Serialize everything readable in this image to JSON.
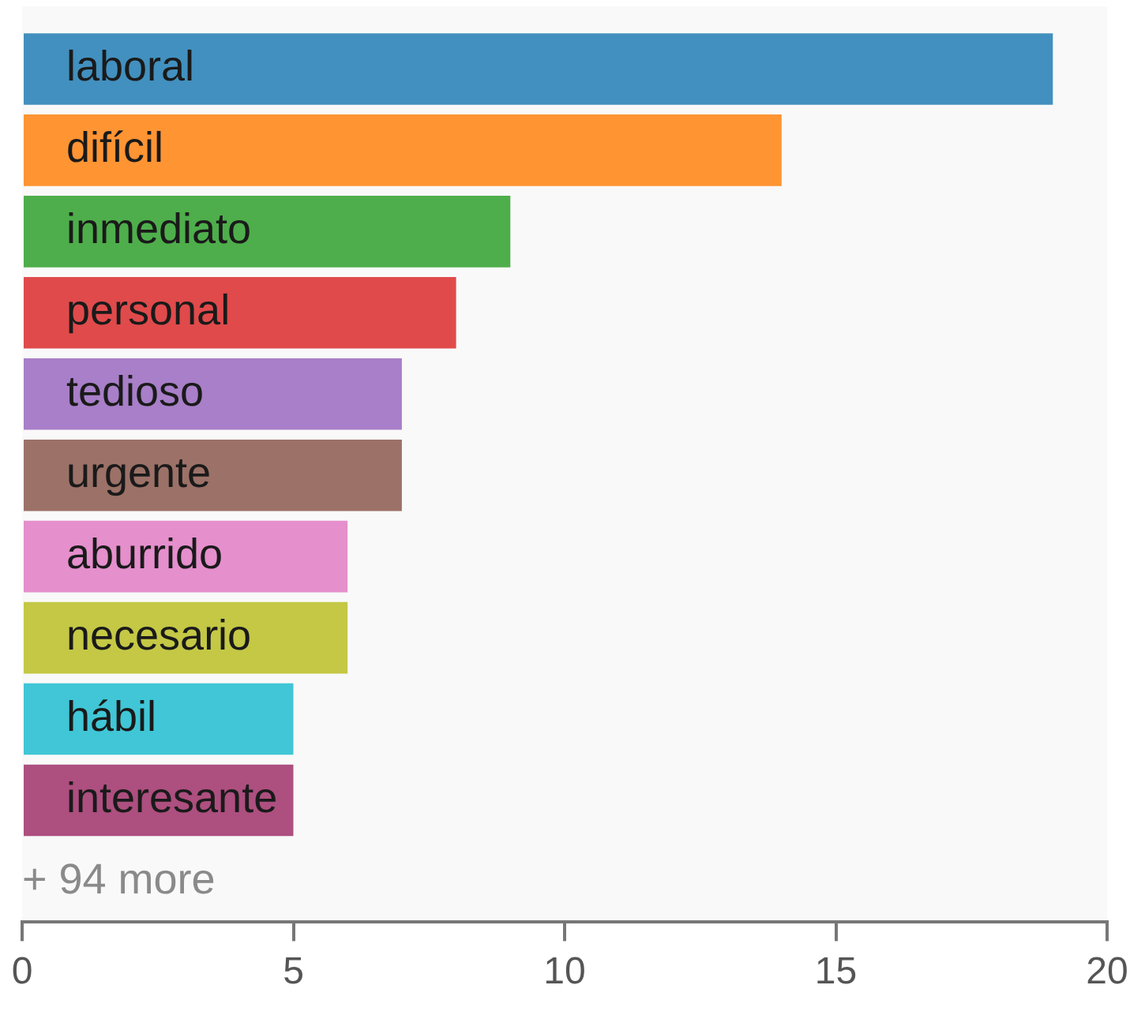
{
  "chart_data": {
    "type": "bar",
    "orientation": "horizontal",
    "categories": [
      "laboral",
      "difícil",
      "inmediato",
      "personal",
      "tedioso",
      "urgente",
      "aburrido",
      "necesario",
      "hábil",
      "interesante"
    ],
    "values": [
      19,
      14,
      9,
      8,
      7,
      7,
      6,
      6,
      5,
      5
    ],
    "colors": [
      "#4290bf",
      "#ff9433",
      "#4eae4b",
      "#e04a4b",
      "#a87fc8",
      "#9c7168",
      "#e58fcd",
      "#c4c845",
      "#40c6d6",
      "#ad4f7f"
    ],
    "xlim": [
      0,
      20
    ],
    "xticks": [
      0,
      5,
      10,
      15,
      20
    ],
    "grid": false,
    "legend": false,
    "annotations": [
      "+ 94 more"
    ]
  }
}
